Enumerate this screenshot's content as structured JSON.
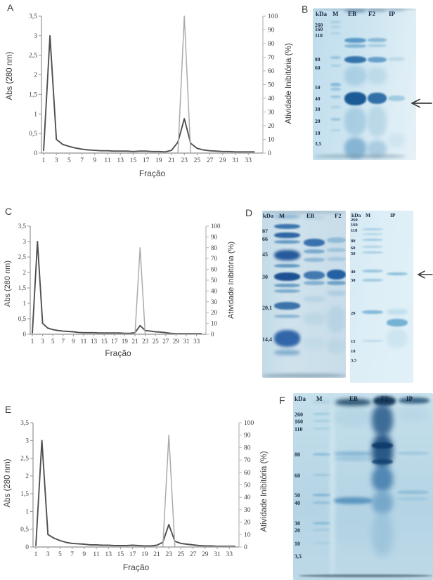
{
  "panels": {
    "a": "A",
    "b": "B",
    "c": "C",
    "d": "D",
    "e": "E",
    "f": "F"
  },
  "chart_data": [
    {
      "id": "A",
      "type": "line",
      "xlabel": "Fração",
      "ylabel_left": "Abs (280 nm)",
      "ylabel_right": "Atividade Inibitória (%)",
      "ylim_left": [
        0,
        3.5
      ],
      "ylim_right": [
        0,
        100
      ],
      "yticks_left": [
        "0",
        "0,5",
        "1",
        "1,5",
        "2",
        "2,5",
        "3",
        "3,5"
      ],
      "yticks_right": [
        "0",
        "10",
        "20",
        "30",
        "40",
        "50",
        "60",
        "70",
        "80",
        "90",
        "100"
      ],
      "xticks": [
        "1",
        "3",
        "5",
        "7",
        "9",
        "11",
        "13",
        "15",
        "17",
        "19",
        "21",
        "23",
        "25",
        "27",
        "29",
        "31",
        "33"
      ],
      "x": [
        1,
        2,
        3,
        4,
        5,
        6,
        7,
        8,
        9,
        10,
        11,
        12,
        13,
        14,
        15,
        16,
        17,
        18,
        19,
        20,
        21,
        22,
        23,
        24,
        25,
        26,
        27,
        28,
        29,
        30,
        31,
        32,
        33,
        34
      ],
      "series": [
        {
          "name": "Abs (280 nm)",
          "axis": "left",
          "color": "#4f4f4f",
          "values": [
            0.05,
            3.0,
            0.35,
            0.22,
            0.17,
            0.13,
            0.1,
            0.08,
            0.07,
            0.06,
            0.06,
            0.05,
            0.05,
            0.05,
            0.04,
            0.05,
            0.05,
            0.04,
            0.04,
            0.03,
            0.07,
            0.28,
            0.88,
            0.25,
            0.12,
            0.08,
            0.06,
            0.05,
            0.04,
            0.04,
            0.03,
            0.03,
            0.03,
            0.03
          ]
        },
        {
          "name": "Atividade Inibitória (%)",
          "axis": "right",
          "color": "#ababab",
          "values": [
            0,
            0,
            0,
            0,
            0,
            0,
            0,
            0,
            0,
            0,
            0,
            0,
            0,
            0,
            0,
            0,
            0,
            0,
            0,
            0,
            0,
            0,
            100,
            0,
            0,
            0,
            0,
            0,
            0,
            0,
            0,
            0,
            0,
            0
          ]
        }
      ]
    },
    {
      "id": "C",
      "type": "line",
      "xlabel": "Fração",
      "ylabel_left": "Abs (280 nm)",
      "ylabel_right": "Atividade Inibitória (%)",
      "ylim_left": [
        0,
        3.5
      ],
      "ylim_right": [
        0,
        100
      ],
      "yticks_left": [
        "0",
        "0,5",
        "1",
        "1,5",
        "2",
        "2,5",
        "3",
        "3,5"
      ],
      "yticks_right": [
        "0",
        "10",
        "20",
        "30",
        "40",
        "50",
        "60",
        "70",
        "80",
        "90",
        "100"
      ],
      "xticks": [
        "1",
        "3",
        "5",
        "7",
        "9",
        "11",
        "13",
        "15",
        "17",
        "19",
        "21",
        "23",
        "25",
        "27",
        "29",
        "31",
        "33"
      ],
      "x": [
        1,
        2,
        3,
        4,
        5,
        6,
        7,
        8,
        9,
        10,
        11,
        12,
        13,
        14,
        15,
        16,
        17,
        18,
        19,
        20,
        21,
        22,
        23,
        24,
        25,
        26,
        27,
        28,
        29,
        30,
        31,
        32,
        33,
        34
      ],
      "series": [
        {
          "name": "Abs (280 nm)",
          "axis": "left",
          "color": "#4f4f4f",
          "values": [
            0.03,
            3.0,
            0.35,
            0.2,
            0.15,
            0.12,
            0.1,
            0.09,
            0.08,
            0.06,
            0.05,
            0.05,
            0.05,
            0.04,
            0.04,
            0.04,
            0.04,
            0.04,
            0.03,
            0.03,
            0.05,
            0.28,
            0.12,
            0.1,
            0.08,
            0.07,
            0.05,
            0.03,
            0.02,
            0.02,
            0.02,
            0.02,
            0.02,
            0.02
          ]
        },
        {
          "name": "Atividade Inibitória (%)",
          "axis": "right",
          "color": "#ababab",
          "values": [
            0,
            0,
            0,
            0,
            0,
            0,
            0,
            0,
            0,
            0,
            0,
            0,
            0,
            0,
            0,
            0,
            0,
            0,
            0,
            0,
            0,
            80,
            0,
            0,
            0,
            0,
            0,
            0,
            0,
            0,
            0,
            0,
            0,
            0
          ]
        }
      ]
    },
    {
      "id": "E",
      "type": "line",
      "xlabel": "Fração",
      "ylabel_left": "Abs (280 nm)",
      "ylabel_right": "Atividade Inibitória (%)",
      "ylim_left": [
        0,
        3.5
      ],
      "ylim_right": [
        0,
        100
      ],
      "yticks_left": [
        "0",
        "0,5",
        "1",
        "1,5",
        "2",
        "2,5",
        "3",
        "3,5"
      ],
      "yticks_right": [
        "0",
        "10",
        "20",
        "30",
        "40",
        "50",
        "60",
        "70",
        "80",
        "90",
        "100"
      ],
      "xticks": [
        "1",
        "3",
        "5",
        "7",
        "9",
        "11",
        "13",
        "15",
        "17",
        "19",
        "21",
        "23",
        "25",
        "27",
        "29",
        "31",
        "33"
      ],
      "x": [
        1,
        2,
        3,
        4,
        5,
        6,
        7,
        8,
        9,
        10,
        11,
        12,
        13,
        14,
        15,
        16,
        17,
        18,
        19,
        20,
        21,
        22,
        23,
        24,
        25,
        26,
        27,
        28,
        29,
        30,
        31,
        32,
        33,
        34
      ],
      "series": [
        {
          "name": "Abs (280 nm)",
          "axis": "left",
          "color": "#4f4f4f",
          "values": [
            0.03,
            3.0,
            0.35,
            0.25,
            0.18,
            0.13,
            0.1,
            0.09,
            0.08,
            0.06,
            0.06,
            0.05,
            0.05,
            0.04,
            0.04,
            0.04,
            0.05,
            0.04,
            0.03,
            0.03,
            0.05,
            0.13,
            0.63,
            0.16,
            0.1,
            0.08,
            0.06,
            0.04,
            0.03,
            0.03,
            0.02,
            0.02,
            0.02,
            0.02
          ]
        },
        {
          "name": "Atividade Inibitória (%)",
          "axis": "right",
          "color": "#ababab",
          "values": [
            0,
            0,
            0,
            0,
            0,
            0,
            0,
            0,
            0,
            0,
            0,
            0,
            0,
            0,
            0,
            0,
            0,
            0,
            0,
            0,
            0,
            0,
            90,
            0,
            0,
            0,
            0,
            0,
            0,
            0,
            0,
            0,
            0,
            0
          ]
        }
      ]
    }
  ],
  "gels": {
    "b": {
      "lane_headers": [
        "kDa",
        "M",
        "EB",
        "F2",
        "IP"
      ],
      "markers": [
        "260",
        "160",
        "110",
        "80",
        "60",
        "50",
        "40",
        "30",
        "20",
        "10",
        "3,5"
      ]
    },
    "d_left": {
      "lane_headers": [
        "kDa",
        "M",
        "EB",
        "F2"
      ],
      "markers": [
        "97",
        "66",
        "45",
        "30",
        "20,1",
        "14,4"
      ]
    },
    "d_right": {
      "lane_headers": [
        "kDa",
        "M",
        "IP"
      ],
      "markers": [
        "260",
        "160",
        "110",
        "80",
        "60",
        "50",
        "40",
        "30",
        "20",
        "15",
        "10",
        "3,5"
      ]
    },
    "f": {
      "lane_headers": [
        "kDa",
        "M",
        "EB",
        "F2",
        "IP"
      ],
      "markers": [
        "260",
        "160",
        "110",
        "80",
        "60",
        "50",
        "40",
        "30",
        "20",
        "10",
        "3,5"
      ]
    }
  }
}
